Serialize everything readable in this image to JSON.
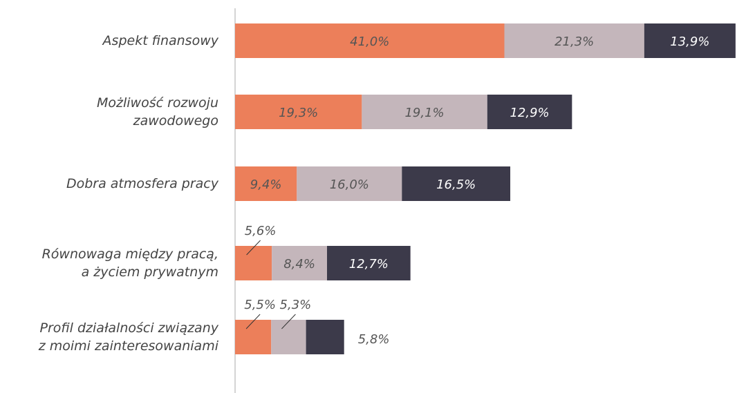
{
  "chart_data": {
    "type": "stacked-barh",
    "categories": [
      "Aspekt finansowy",
      "Możliwość rozwoju\nzawodowego",
      "Dobra atmosfera pracy",
      "Równowaga między pracą,\na życiem prywatnym",
      "Profil działalności związany\nz moimi zainteresowaniami"
    ],
    "series": [
      {
        "color": "#ec7f5a",
        "values": [
          41.0,
          19.3,
          9.4,
          5.6,
          5.5
        ],
        "value_labels": [
          "41,0%",
          "19,3%",
          "9,4%",
          "5,6%",
          "5,5%"
        ]
      },
      {
        "color": "#c4b6bb",
        "values": [
          21.3,
          19.1,
          16.0,
          8.4,
          5.3
        ],
        "value_labels": [
          "21,3%",
          "19,1%",
          "16,0%",
          "8,4%",
          "5,3%"
        ]
      },
      {
        "color": "#3c3a4a",
        "values": [
          13.9,
          12.9,
          16.5,
          12.7,
          5.8
        ],
        "value_labels": [
          "13,9%",
          "12,9%",
          "16,5%",
          "12,7%",
          "5,8%"
        ]
      }
    ]
  }
}
